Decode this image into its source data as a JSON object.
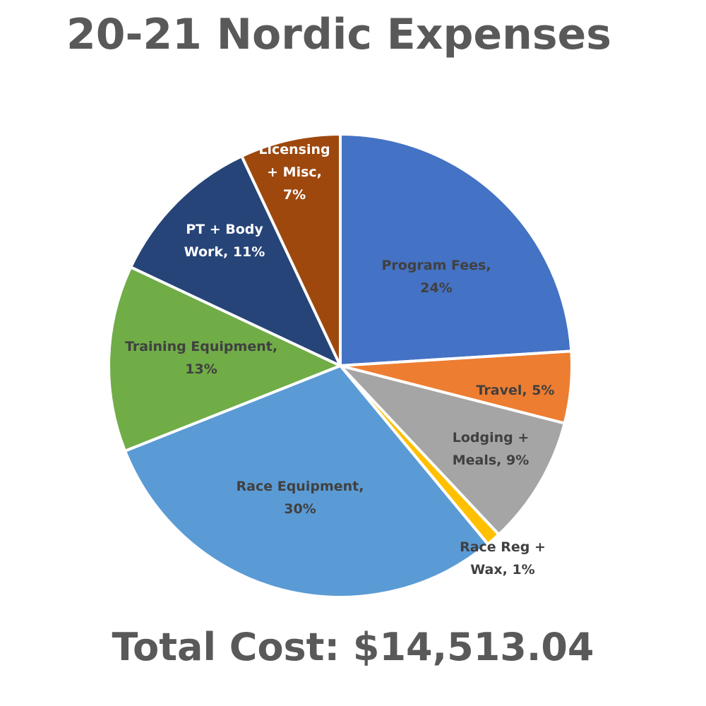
{
  "title": "20-21 Nordic Expenses",
  "total": "Total Cost: $14,513.04",
  "chart_data": {
    "type": "pie",
    "title": "20-21 Nordic Expenses",
    "total_label": "Total Cost: $14,513.04",
    "start": "12 o'clock, clockwise",
    "legend": "none (data labels on slices)",
    "slices": [
      {
        "category": "Program Fees",
        "value": 24,
        "color": "#4472C4",
        "text_color": "#404040",
        "label_lines": [
          "Program Fees,",
          "24%"
        ]
      },
      {
        "category": "Travel",
        "value": 5,
        "color": "#ED7D31",
        "text_color": "#404040",
        "label_lines": [
          "Travel, 5%"
        ]
      },
      {
        "category": "Lodging + Meals",
        "value": 9,
        "color": "#A5A5A5",
        "text_color": "#404040",
        "label_lines": [
          "Lodging +",
          "Meals, 9%"
        ]
      },
      {
        "category": "Race Reg + Wax",
        "value": 1,
        "color": "#FFC000",
        "text_color": "#404040",
        "label_lines": [
          "Race Reg +",
          "Wax, 1%"
        ]
      },
      {
        "category": "Race Equipment",
        "value": 30,
        "color": "#5B9BD5",
        "text_color": "#404040",
        "label_lines": [
          "Race Equipment,",
          "30%"
        ]
      },
      {
        "category": "Training Equipment",
        "value": 13,
        "color": "#70AD47",
        "text_color": "#404040",
        "label_lines": [
          "Training Equipment,",
          "13%"
        ]
      },
      {
        "category": "PT + Body Work",
        "value": 11,
        "color": "#264478",
        "text_color": "#FFFFFF",
        "label_lines": [
          "PT + Body",
          "Work, 11%"
        ]
      },
      {
        "category": "Licensing + Misc",
        "value": 7,
        "color": "#9E480E",
        "text_color": "#FFFFFF",
        "label_lines": [
          "Licensing",
          "+ Misc,",
          "7%"
        ]
      }
    ]
  }
}
